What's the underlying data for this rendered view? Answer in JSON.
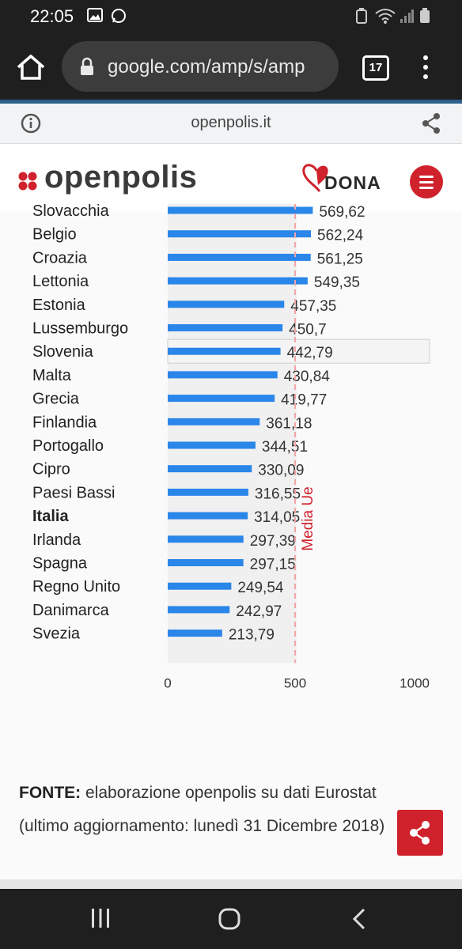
{
  "status": {
    "time": "22:05"
  },
  "browser": {
    "url": "google.com/amp/s/amp",
    "tab_count": "17"
  },
  "amp": {
    "domain": "openpolis.it"
  },
  "site": {
    "logo_text": "openpolis",
    "donate_label": "DONA"
  },
  "chart_data": {
    "type": "bar",
    "orientation": "horizontal",
    "categories": [
      "Slovacchia",
      "Belgio",
      "Croazia",
      "Lettonia",
      "Estonia",
      "Lussemburgo",
      "Slovenia",
      "Malta",
      "Grecia",
      "Finlandia",
      "Portogallo",
      "Cipro",
      "Paesi Bassi",
      "Italia",
      "Irlanda",
      "Spagna",
      "Regno Unito",
      "Danimarca",
      "Svezia"
    ],
    "values": [
      569.62,
      562.24,
      561.25,
      549.35,
      457.35,
      450.7,
      442.79,
      430.84,
      419.77,
      361.18,
      344.51,
      330.09,
      316.55,
      314.05,
      297.39,
      297.15,
      249.54,
      242.97,
      213.79
    ],
    "value_labels": [
      "569,62",
      "562,24",
      "561,25",
      "549,35",
      "457,35",
      "450,7",
      "442,79",
      "430,84",
      "419,77",
      "361,18",
      "344,51",
      "330,09",
      "316,55",
      "314,05",
      "297,39",
      "297,15",
      "249,54",
      "242,97",
      "213,79"
    ],
    "highlight_category": "Italia",
    "hovered_category": "Slovenia",
    "xlim": [
      0,
      1000
    ],
    "xticks": [
      0,
      500,
      1000
    ],
    "xtick_labels": [
      "0",
      "500",
      "1000"
    ],
    "reference_line": {
      "label": "Media Ue",
      "value": 500
    },
    "bar_color": "#2a86e8",
    "reference_color": "#d0222c",
    "grid": false
  },
  "footer": {
    "source_label": "FONTE:",
    "source_text": " elaborazione openpolis su dati Eurostat (ultimo aggiornamento: lunedì 31 Dicembre 2018)"
  }
}
